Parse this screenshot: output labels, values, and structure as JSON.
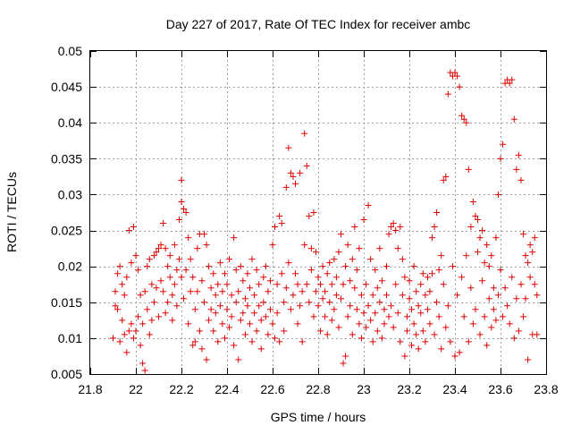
{
  "chart_data": {
    "type": "scatter",
    "title": "Day 227 of 2017, Rate Of TEC Index for receiver ambc",
    "xlabel": "GPS time / hours",
    "ylabel": "ROTI / TECUs",
    "xlim": [
      21.8,
      23.8
    ],
    "ylim": [
      0.005,
      0.05
    ],
    "x_ticks": [
      21.8,
      22.0,
      22.2,
      22.4,
      22.6,
      22.8,
      23.0,
      23.2,
      23.4,
      23.6,
      23.8
    ],
    "x_tick_labels": [
      "21.8",
      "22",
      "22.2",
      "22.4",
      "22.6",
      "22.8",
      "23",
      "23.2",
      "23.4",
      "23.6",
      "23.8"
    ],
    "y_ticks": [
      0.005,
      0.01,
      0.015,
      0.02,
      0.025,
      0.03,
      0.035,
      0.04,
      0.045,
      0.05
    ],
    "y_tick_labels": [
      "0.005",
      "0.01",
      "0.015",
      "0.02",
      "0.025",
      "0.03",
      "0.035",
      "0.04",
      "0.045",
      "0.05"
    ],
    "grid": true,
    "marker": "plus",
    "color": "#e00000",
    "points": [
      [
        21.9,
        0.01
      ],
      [
        21.91,
        0.0165
      ],
      [
        21.91,
        0.0145
      ],
      [
        21.92,
        0.019
      ],
      [
        21.92,
        0.014
      ],
      [
        21.93,
        0.02
      ],
      [
        21.93,
        0.0095
      ],
      [
        21.94,
        0.0175
      ],
      [
        21.94,
        0.0125
      ],
      [
        21.95,
        0.016
      ],
      [
        21.95,
        0.0105
      ],
      [
        21.96,
        0.0185
      ],
      [
        21.96,
        0.008
      ],
      [
        21.97,
        0.025
      ],
      [
        21.97,
        0.011
      ],
      [
        21.98,
        0.0205
      ],
      [
        21.98,
        0.012
      ],
      [
        21.99,
        0.0255
      ],
      [
        21.99,
        0.01
      ],
      [
        22.0,
        0.0215
      ],
      [
        22.0,
        0.011
      ],
      [
        22.01,
        0.0195
      ],
      [
        22.01,
        0.013
      ],
      [
        22.02,
        0.009
      ],
      [
        22.02,
        0.016
      ],
      [
        22.03,
        0.0065
      ],
      [
        22.03,
        0.012
      ],
      [
        22.04,
        0.0055
      ],
      [
        22.04,
        0.0165
      ],
      [
        22.05,
        0.02
      ],
      [
        22.05,
        0.014
      ],
      [
        22.06,
        0.0105
      ],
      [
        22.06,
        0.021
      ],
      [
        22.07,
        0.0175
      ],
      [
        22.07,
        0.0125
      ],
      [
        22.08,
        0.0215
      ],
      [
        22.08,
        0.015
      ],
      [
        22.09,
        0.022
      ],
      [
        22.09,
        0.017
      ],
      [
        22.1,
        0.0225
      ],
      [
        22.1,
        0.013
      ],
      [
        22.11,
        0.023
      ],
      [
        22.11,
        0.018
      ],
      [
        22.12,
        0.026
      ],
      [
        22.12,
        0.0165
      ],
      [
        22.13,
        0.0225
      ],
      [
        22.13,
        0.0135
      ],
      [
        22.14,
        0.02
      ],
      [
        22.14,
        0.015
      ],
      [
        22.15,
        0.0185
      ],
      [
        22.15,
        0.0215
      ],
      [
        22.16,
        0.016
      ],
      [
        22.16,
        0.0125
      ],
      [
        22.17,
        0.023
      ],
      [
        22.17,
        0.0175
      ],
      [
        22.18,
        0.0195
      ],
      [
        22.18,
        0.0145
      ],
      [
        22.19,
        0.021
      ],
      [
        22.19,
        0.0265
      ],
      [
        22.2,
        0.029
      ],
      [
        22.2,
        0.032
      ],
      [
        22.2,
        0.0185
      ],
      [
        22.21,
        0.028
      ],
      [
        22.21,
        0.0155
      ],
      [
        22.22,
        0.0275
      ],
      [
        22.22,
        0.0195
      ],
      [
        22.23,
        0.024
      ],
      [
        22.23,
        0.012
      ],
      [
        22.24,
        0.0165
      ],
      [
        22.24,
        0.021
      ],
      [
        22.25,
        0.009
      ],
      [
        22.25,
        0.0185
      ],
      [
        22.26,
        0.014
      ],
      [
        22.26,
        0.0095
      ],
      [
        22.27,
        0.0165
      ],
      [
        22.27,
        0.0225
      ],
      [
        22.28,
        0.0245
      ],
      [
        22.28,
        0.011
      ],
      [
        22.29,
        0.018
      ],
      [
        22.29,
        0.0085
      ],
      [
        22.3,
        0.0245
      ],
      [
        22.3,
        0.015
      ],
      [
        22.31,
        0.023
      ],
      [
        22.31,
        0.007
      ],
      [
        22.32,
        0.02
      ],
      [
        22.32,
        0.0125
      ],
      [
        22.33,
        0.014
      ],
      [
        22.33,
        0.017
      ],
      [
        22.34,
        0.011
      ],
      [
        22.34,
        0.019
      ],
      [
        22.35,
        0.0135
      ],
      [
        22.35,
        0.016
      ],
      [
        22.36,
        0.0095
      ],
      [
        22.36,
        0.0175
      ],
      [
        22.37,
        0.0145
      ],
      [
        22.37,
        0.0205
      ],
      [
        22.38,
        0.012
      ],
      [
        22.38,
        0.0165
      ],
      [
        22.39,
        0.019
      ],
      [
        22.39,
        0.01
      ],
      [
        22.4,
        0.014
      ],
      [
        22.4,
        0.0175
      ],
      [
        22.41,
        0.021
      ],
      [
        22.41,
        0.0115
      ],
      [
        22.42,
        0.016
      ],
      [
        22.42,
        0.013
      ],
      [
        22.43,
        0.024
      ],
      [
        22.43,
        0.009
      ],
      [
        22.44,
        0.0195
      ],
      [
        22.44,
        0.015
      ],
      [
        22.45,
        0.007
      ],
      [
        22.45,
        0.0165
      ],
      [
        22.46,
        0.02
      ],
      [
        22.46,
        0.0125
      ],
      [
        22.47,
        0.018
      ],
      [
        22.47,
        0.0135
      ],
      [
        22.48,
        0.0155
      ],
      [
        22.48,
        0.0105
      ],
      [
        22.49,
        0.019
      ],
      [
        22.49,
        0.0145
      ],
      [
        22.5,
        0.017
      ],
      [
        22.5,
        0.012
      ],
      [
        22.51,
        0.021
      ],
      [
        22.51,
        0.0095
      ],
      [
        22.52,
        0.016
      ],
      [
        22.52,
        0.0135
      ],
      [
        22.53,
        0.0195
      ],
      [
        22.53,
        0.011
      ],
      [
        22.54,
        0.0145
      ],
      [
        22.54,
        0.0175
      ],
      [
        22.55,
        0.0125
      ],
      [
        22.55,
        0.0085
      ],
      [
        22.56,
        0.0185
      ],
      [
        22.56,
        0.015
      ],
      [
        22.57,
        0.013
      ],
      [
        22.57,
        0.02
      ],
      [
        22.58,
        0.0105
      ],
      [
        22.58,
        0.0165
      ],
      [
        22.59,
        0.018
      ],
      [
        22.59,
        0.014
      ],
      [
        22.6,
        0.012
      ],
      [
        22.6,
        0.023
      ],
      [
        22.61,
        0.0255
      ],
      [
        22.61,
        0.01
      ],
      [
        22.62,
        0.0175
      ],
      [
        22.62,
        0.0135
      ],
      [
        22.63,
        0.027
      ],
      [
        22.63,
        0.0095
      ],
      [
        22.64,
        0.019
      ],
      [
        22.64,
        0.026
      ],
      [
        22.65,
        0.015
      ],
      [
        22.65,
        0.011
      ],
      [
        22.66,
        0.031
      ],
      [
        22.66,
        0.017
      ],
      [
        22.67,
        0.0365
      ],
      [
        22.67,
        0.0205
      ],
      [
        22.68,
        0.033
      ],
      [
        22.68,
        0.014
      ],
      [
        22.69,
        0.0325
      ],
      [
        22.69,
        0.016
      ],
      [
        22.7,
        0.0315
      ],
      [
        22.7,
        0.019
      ],
      [
        22.71,
        0.012
      ],
      [
        22.71,
        0.0175
      ],
      [
        22.72,
        0.033
      ],
      [
        22.72,
        0.0145
      ],
      [
        22.73,
        0.0095
      ],
      [
        22.73,
        0.0165
      ],
      [
        22.74,
        0.0385
      ],
      [
        22.74,
        0.023
      ],
      [
        22.75,
        0.034
      ],
      [
        22.75,
        0.0175
      ],
      [
        22.76,
        0.027
      ],
      [
        22.76,
        0.015
      ],
      [
        22.77,
        0.0225
      ],
      [
        22.77,
        0.0195
      ],
      [
        22.78,
        0.0275
      ],
      [
        22.78,
        0.013
      ],
      [
        22.79,
        0.022
      ],
      [
        22.79,
        0.0165
      ],
      [
        22.8,
        0.0185
      ],
      [
        22.8,
        0.0145
      ],
      [
        22.81,
        0.011
      ],
      [
        22.81,
        0.0175
      ],
      [
        22.82,
        0.02
      ],
      [
        22.82,
        0.0155
      ],
      [
        22.83,
        0.013
      ],
      [
        22.83,
        0.0165
      ],
      [
        22.84,
        0.019
      ],
      [
        22.84,
        0.0105
      ],
      [
        22.85,
        0.015
      ],
      [
        22.85,
        0.0205
      ],
      [
        22.86,
        0.0175
      ],
      [
        22.86,
        0.0125
      ],
      [
        22.87,
        0.021
      ],
      [
        22.87,
        0.014
      ],
      [
        22.88,
        0.016
      ],
      [
        22.88,
        0.0185
      ],
      [
        22.89,
        0.022
      ],
      [
        22.89,
        0.0115
      ],
      [
        22.9,
        0.0245
      ],
      [
        22.9,
        0.0155
      ],
      [
        22.91,
        0.0065
      ],
      [
        22.91,
        0.0175
      ],
      [
        22.92,
        0.0075
      ],
      [
        22.92,
        0.02
      ],
      [
        22.93,
        0.013
      ],
      [
        22.93,
        0.023
      ],
      [
        22.94,
        0.018
      ],
      [
        22.94,
        0.0145
      ],
      [
        22.95,
        0.021
      ],
      [
        22.95,
        0.0105
      ],
      [
        22.96,
        0.017
      ],
      [
        22.96,
        0.0255
      ],
      [
        22.97,
        0.014
      ],
      [
        22.97,
        0.0195
      ],
      [
        22.98,
        0.012
      ],
      [
        22.98,
        0.0225
      ],
      [
        22.99,
        0.016
      ],
      [
        22.99,
        0.01
      ],
      [
        23.0,
        0.0135
      ],
      [
        23.0,
        0.0265
      ],
      [
        23.01,
        0.0115
      ],
      [
        23.01,
        0.0175
      ],
      [
        23.02,
        0.0285
      ],
      [
        23.02,
        0.0145
      ],
      [
        23.03,
        0.0125
      ],
      [
        23.03,
        0.021
      ],
      [
        23.04,
        0.016
      ],
      [
        23.04,
        0.0095
      ],
      [
        23.05,
        0.0195
      ],
      [
        23.05,
        0.0135
      ],
      [
        23.06,
        0.011
      ],
      [
        23.06,
        0.017
      ],
      [
        23.07,
        0.015
      ],
      [
        23.07,
        0.0225
      ],
      [
        23.08,
        0.01
      ],
      [
        23.08,
        0.018
      ],
      [
        23.09,
        0.014
      ],
      [
        23.09,
        0.012
      ],
      [
        23.1,
        0.016
      ],
      [
        23.1,
        0.02
      ],
      [
        23.11,
        0.013
      ],
      [
        23.11,
        0.0245
      ],
      [
        23.12,
        0.0255
      ],
      [
        23.12,
        0.0145
      ],
      [
        23.13,
        0.026
      ],
      [
        23.13,
        0.0115
      ],
      [
        23.14,
        0.025
      ],
      [
        23.14,
        0.0175
      ],
      [
        23.15,
        0.0225
      ],
      [
        23.15,
        0.0135
      ],
      [
        23.16,
        0.0255
      ],
      [
        23.16,
        0.0095
      ],
      [
        23.17,
        0.021
      ],
      [
        23.17,
        0.016
      ],
      [
        23.18,
        0.0075
      ],
      [
        23.18,
        0.0185
      ],
      [
        23.19,
        0.013
      ],
      [
        23.19,
        0.011
      ],
      [
        23.2,
        0.0155
      ],
      [
        23.2,
        0.018
      ],
      [
        23.21,
        0.014
      ],
      [
        23.21,
        0.009
      ],
      [
        23.22,
        0.02
      ],
      [
        23.22,
        0.012
      ],
      [
        23.23,
        0.0165
      ],
      [
        23.23,
        0.0105
      ],
      [
        23.24,
        0.0145
      ],
      [
        23.24,
        0.0085
      ],
      [
        23.25,
        0.0175
      ],
      [
        23.25,
        0.0135
      ],
      [
        23.26,
        0.011
      ],
      [
        23.26,
        0.019
      ],
      [
        23.27,
        0.016
      ],
      [
        23.27,
        0.0095
      ],
      [
        23.28,
        0.014
      ],
      [
        23.28,
        0.0185
      ],
      [
        23.29,
        0.012
      ],
      [
        23.29,
        0.0165
      ],
      [
        23.3,
        0.019
      ],
      [
        23.3,
        0.024
      ],
      [
        23.31,
        0.0255
      ],
      [
        23.31,
        0.0105
      ],
      [
        23.32,
        0.0275
      ],
      [
        23.32,
        0.015
      ],
      [
        23.33,
        0.0195
      ],
      [
        23.33,
        0.013
      ],
      [
        23.34,
        0.0215
      ],
      [
        23.34,
        0.0085
      ],
      [
        23.35,
        0.032
      ],
      [
        23.35,
        0.0175
      ],
      [
        23.36,
        0.0325
      ],
      [
        23.36,
        0.0115
      ],
      [
        23.37,
        0.044
      ],
      [
        23.37,
        0.0145
      ],
      [
        23.38,
        0.047
      ],
      [
        23.38,
        0.0095
      ],
      [
        23.39,
        0.0465
      ],
      [
        23.39,
        0.02
      ],
      [
        23.4,
        0.047
      ],
      [
        23.4,
        0.0075
      ],
      [
        23.41,
        0.0465
      ],
      [
        23.41,
        0.016
      ],
      [
        23.42,
        0.045
      ],
      [
        23.42,
        0.008
      ],
      [
        23.43,
        0.041
      ],
      [
        23.43,
        0.0185
      ],
      [
        23.44,
        0.0405
      ],
      [
        23.44,
        0.013
      ],
      [
        23.45,
        0.04
      ],
      [
        23.45,
        0.0215
      ],
      [
        23.46,
        0.0335
      ],
      [
        23.46,
        0.0095
      ],
      [
        23.47,
        0.0255
      ],
      [
        23.47,
        0.017
      ],
      [
        23.48,
        0.029
      ],
      [
        23.48,
        0.012
      ],
      [
        23.49,
        0.027
      ],
      [
        23.49,
        0.014
      ],
      [
        23.5,
        0.0265
      ],
      [
        23.5,
        0.022
      ],
      [
        23.51,
        0.024
      ],
      [
        23.51,
        0.0105
      ],
      [
        23.52,
        0.025
      ],
      [
        23.52,
        0.018
      ],
      [
        23.53,
        0.0205
      ],
      [
        23.53,
        0.013
      ],
      [
        23.54,
        0.023
      ],
      [
        23.54,
        0.009
      ],
      [
        23.55,
        0.02
      ],
      [
        23.55,
        0.0155
      ],
      [
        23.56,
        0.0215
      ],
      [
        23.56,
        0.0115
      ],
      [
        23.57,
        0.017
      ],
      [
        23.57,
        0.014
      ],
      [
        23.58,
        0.024
      ],
      [
        23.58,
        0.0125
      ],
      [
        23.59,
        0.03
      ],
      [
        23.59,
        0.016
      ],
      [
        23.6,
        0.035
      ],
      [
        23.6,
        0.0195
      ],
      [
        23.61,
        0.037
      ],
      [
        23.61,
        0.013
      ],
      [
        23.62,
        0.0455
      ],
      [
        23.62,
        0.017
      ],
      [
        23.63,
        0.046
      ],
      [
        23.63,
        0.0145
      ],
      [
        23.64,
        0.0455
      ],
      [
        23.64,
        0.012
      ],
      [
        23.65,
        0.046
      ],
      [
        23.65,
        0.0185
      ],
      [
        23.66,
        0.0405
      ],
      [
        23.66,
        0.01
      ],
      [
        23.67,
        0.0335
      ],
      [
        23.67,
        0.0155
      ],
      [
        23.68,
        0.0355
      ],
      [
        23.68,
        0.011
      ],
      [
        23.69,
        0.032
      ],
      [
        23.69,
        0.0175
      ],
      [
        23.7,
        0.0245
      ],
      [
        23.7,
        0.013
      ],
      [
        23.71,
        0.0215
      ],
      [
        23.71,
        0.0155
      ],
      [
        23.72,
        0.0205
      ],
      [
        23.72,
        0.007
      ],
      [
        23.73,
        0.023
      ],
      [
        23.73,
        0.0185
      ],
      [
        23.74,
        0.0105
      ],
      [
        23.74,
        0.022
      ],
      [
        23.75,
        0.024
      ],
      [
        23.75,
        0.0175
      ],
      [
        23.76,
        0.016
      ],
      [
        23.76,
        0.0105
      ]
    ]
  }
}
